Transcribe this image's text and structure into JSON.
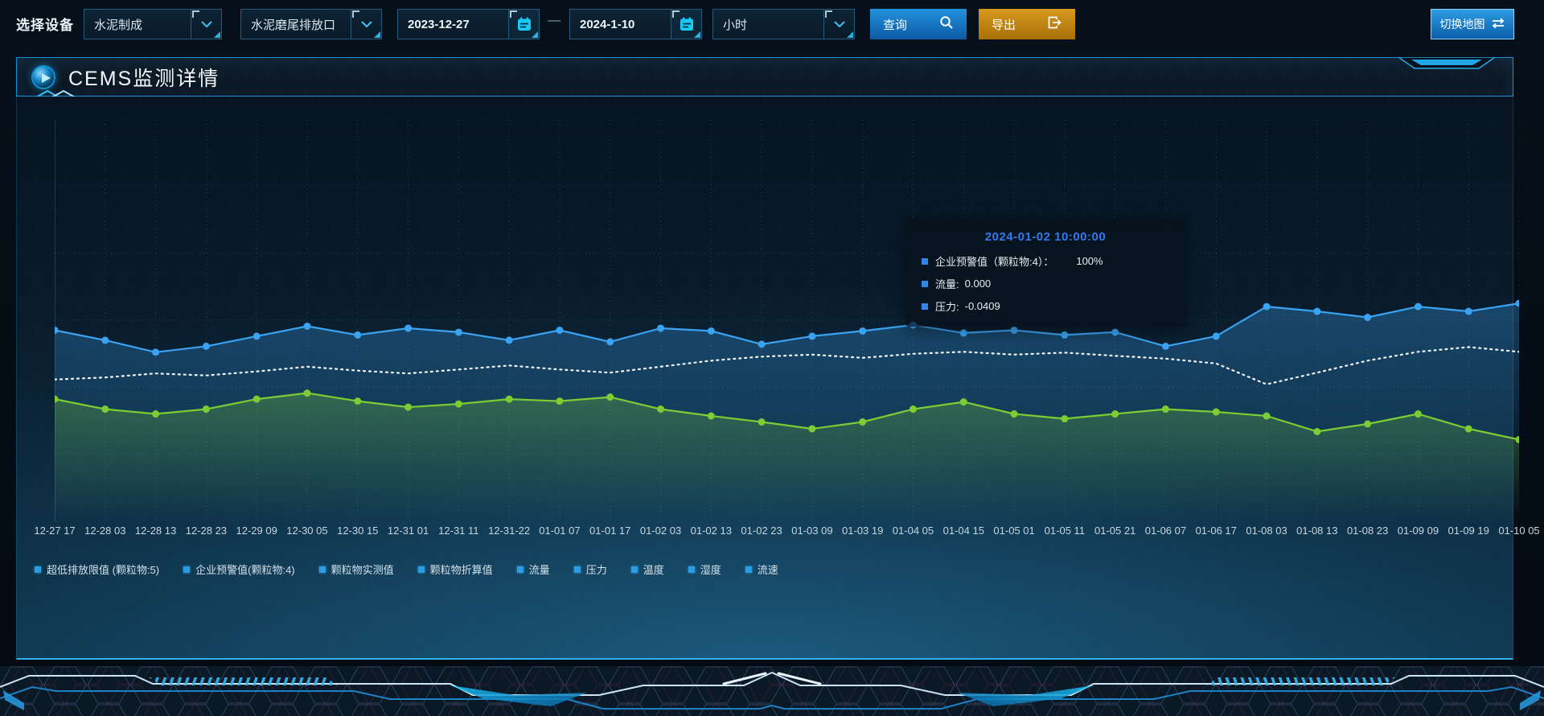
{
  "toolbar": {
    "label": "选择设备",
    "device": "水泥制成",
    "outlet": "水泥磨尾排放口",
    "date_start": "2023-12-27",
    "date_separator": "—",
    "date_end": "2024-1-10",
    "interval": "小时",
    "query": "查询",
    "export": "导出",
    "switch_map": "切换地图"
  },
  "panel": {
    "title": "CEMS监测详情"
  },
  "tooltip": {
    "title": "2024-01-02 10:00:00",
    "rows": [
      {
        "label": "企业预警值（颗粒物:4）：",
        "value": "100%"
      },
      {
        "label": "流量:",
        "value": "0.000"
      },
      {
        "label": "压力:",
        "value": "-0.0409"
      }
    ]
  },
  "legend": [
    "超低排放限值 (颗粒物:5)",
    "企业预警值(颗粒物:4)",
    "颗粒物实测值",
    "颗粒物折算值",
    "流量",
    "压力",
    "温度",
    "湿度",
    "流速"
  ],
  "colors": {
    "accent_cyan": "#2db4ef",
    "button_blue": "#1779c4",
    "button_orange": "#c08410",
    "series_blue": "#3aa3f2",
    "series_green": "#7ccc33",
    "series_white": "#f2f7fa",
    "tooltip_title_blue": "#2d7bf0"
  },
  "chart_data": {
    "type": "line",
    "title": "CEMS监测详情",
    "xlabel": "",
    "ylabel": "",
    "y_axis_visible": false,
    "grid": true,
    "legend_position": "bottom",
    "value_units": "percent of plot height from bottom (y axis unlabeled in source)",
    "categories": [
      "12-27 17",
      "12-28 03",
      "12-28 13",
      "12-28 23",
      "12-29 09",
      "12-30 05",
      "12-30 15",
      "12-31 01",
      "12-31 11",
      "12-31-22",
      "01-01 07",
      "01-01 17",
      "01-02 03",
      "01-02 13",
      "01-02 23",
      "01-03 09",
      "01-03 19",
      "01-04 05",
      "01-04 15",
      "01-05 01",
      "01-05 11",
      "01-05 21",
      "01-06 07",
      "01-06 17",
      "01-08 03",
      "01-08 13",
      "01-08 23",
      "01-09 09",
      "01-09 19",
      "01-10 05"
    ],
    "series": [
      {
        "name": "企业预警值(颗粒物:4)",
        "color": "#3aa3f2",
        "style": "solid-dots-area",
        "values": [
          47.5,
          45.0,
          42.0,
          43.5,
          46.0,
          48.5,
          46.3,
          48.0,
          47.0,
          45.0,
          47.5,
          44.6,
          48.0,
          47.3,
          44.0,
          46.0,
          47.3,
          48.8,
          46.8,
          47.5,
          46.3,
          47.0,
          43.5,
          46.0,
          53.4,
          52.2,
          50.7,
          53.4,
          52.2,
          54.2
        ]
      },
      {
        "name": "流量",
        "color": "#f2f7fa",
        "style": "dashed",
        "values": [
          35.2,
          35.7,
          36.7,
          36.2,
          37.2,
          38.4,
          37.4,
          36.7,
          37.7,
          38.7,
          37.7,
          36.9,
          38.4,
          39.9,
          40.9,
          41.4,
          40.6,
          41.6,
          42.1,
          41.4,
          41.9,
          41.1,
          40.4,
          39.2,
          34.0,
          36.9,
          39.9,
          42.1,
          43.3,
          42.1
        ]
      },
      {
        "name": "压力",
        "color": "#7ccc33",
        "style": "solid-dots-area",
        "values": [
          30.3,
          27.8,
          26.6,
          27.8,
          30.3,
          31.8,
          29.8,
          28.3,
          29.1,
          30.3,
          29.8,
          30.8,
          27.8,
          26.1,
          24.6,
          22.9,
          24.6,
          27.8,
          29.6,
          26.6,
          25.4,
          26.6,
          27.8,
          27.1,
          26.1,
          22.2,
          24.1,
          26.6,
          22.9,
          20.2
        ]
      }
    ]
  }
}
